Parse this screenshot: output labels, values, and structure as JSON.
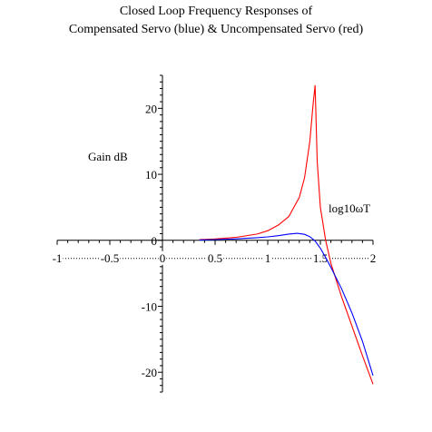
{
  "chart_data": {
    "type": "line",
    "title_lines": [
      "Closed Loop Frequency Responses of",
      "Compensated Servo (blue) &  Uncompensated Servo (red)"
    ],
    "xlabel": "log10ωT",
    "ylabel": "Gain dB",
    "xlim": [
      -1,
      2
    ],
    "ylim": [
      -23,
      25
    ],
    "x_ticks": [
      {
        "value": -1,
        "label": "-1"
      },
      {
        "value": -0.5,
        "label": "-0.5"
      },
      {
        "value": 0,
        "label": "0"
      },
      {
        "value": 0.5,
        "label": "0.5"
      },
      {
        "value": 1,
        "label": "1"
      },
      {
        "value": 1.5,
        "label": "1.5"
      },
      {
        "value": 2,
        "label": "2"
      }
    ],
    "y_ticks": [
      {
        "value": 20,
        "label": "20"
      },
      {
        "value": 10,
        "label": "10"
      },
      {
        "value": 0,
        "label": "0"
      },
      {
        "value": -10,
        "label": "-10"
      },
      {
        "value": -20,
        "label": "-20"
      }
    ],
    "grid": false,
    "series": [
      {
        "color": "#ff0000",
        "x": [
          0.35,
          0.5,
          0.7,
          0.9,
          1.0,
          1.1,
          1.2,
          1.3,
          1.35,
          1.4,
          1.43,
          1.45,
          1.47,
          1.5,
          1.55,
          1.6,
          1.7,
          1.8,
          1.9,
          2.0
        ],
        "y": [
          0.1,
          0.2,
          0.45,
          0.95,
          1.45,
          2.3,
          3.6,
          6.5,
          9.5,
          15.0,
          20.5,
          23.5,
          12.0,
          5.0,
          0.0,
          -3.5,
          -8.5,
          -13.0,
          -17.5,
          -21.8
        ]
      },
      {
        "color": "#0000ff",
        "x": [
          0.35,
          0.5,
          0.7,
          0.9,
          1.0,
          1.1,
          1.2,
          1.28,
          1.35,
          1.4,
          1.45,
          1.5,
          1.55,
          1.6,
          1.7,
          1.8,
          1.9,
          2.0
        ],
        "y": [
          0.05,
          0.1,
          0.22,
          0.4,
          0.52,
          0.7,
          0.95,
          1.05,
          0.9,
          0.55,
          -0.1,
          -1.2,
          -2.6,
          -4.1,
          -7.3,
          -11.0,
          -15.3,
          -20.5
        ]
      }
    ]
  }
}
